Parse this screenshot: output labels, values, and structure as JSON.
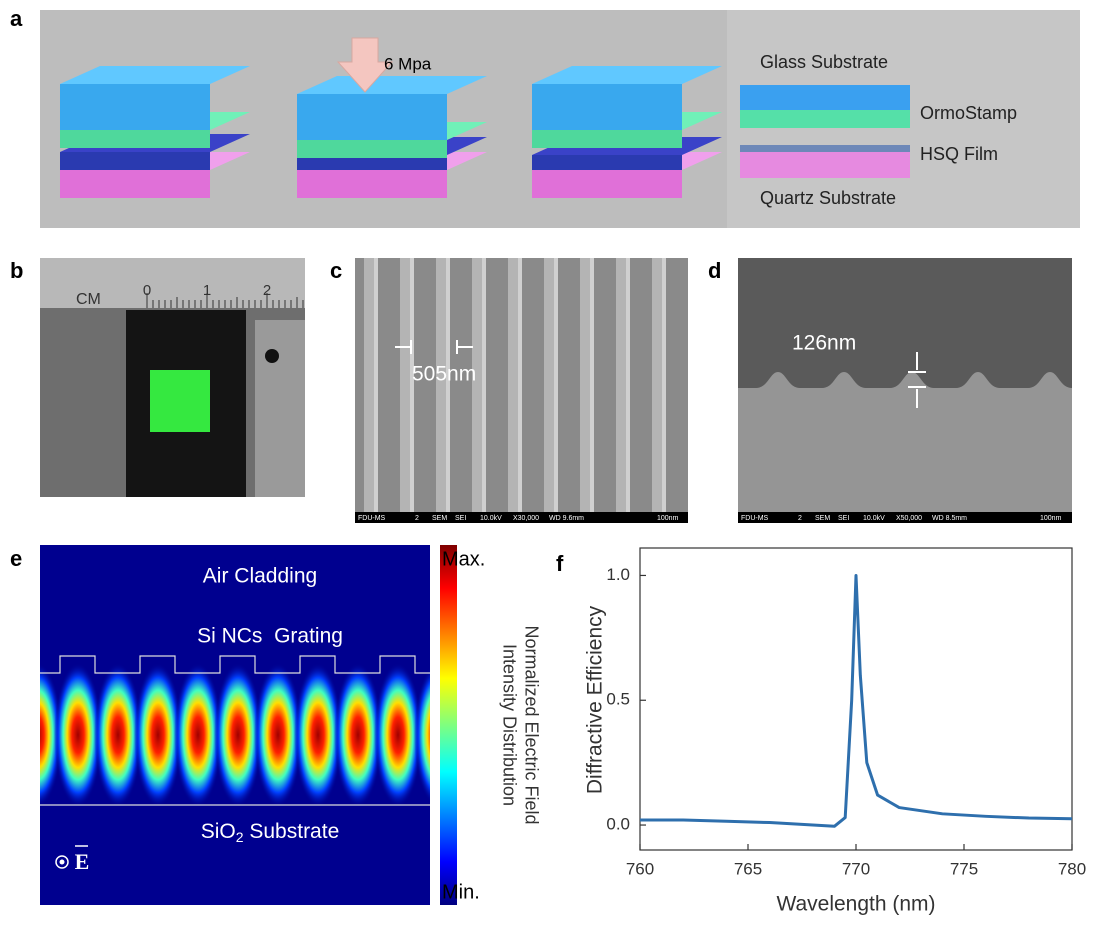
{
  "panels": {
    "a": {
      "label": "a",
      "pressure": "6 Mpa",
      "legend": [
        "Glass Substrate",
        "OrmoStamp",
        "HSQ Film",
        "Quartz Substrate"
      ]
    },
    "b": {
      "label": "b",
      "ruler_unit": "CM",
      "ruler_numbers": [
        "0",
        "1",
        "2"
      ]
    },
    "c": {
      "label": "c",
      "period": "505nm",
      "sem_footer": [
        "FDU-MS",
        "2",
        "SEM",
        "SEI",
        "10.0kV",
        "X30,000",
        "WD 9.6mm",
        "100nm"
      ]
    },
    "d": {
      "label": "d",
      "height": "126nm",
      "sem_footer": [
        "FDU-MS",
        "2",
        "SEM",
        "SEI",
        "10.0kV",
        "X50,000",
        "WD 8.5mm",
        "100nm"
      ]
    },
    "e": {
      "label": "e",
      "air": "Air Cladding",
      "grating": "Si NCs  Grating",
      "substrate": "SiO",
      "substrate_sub": "2",
      "substrate_rest": " Substrate",
      "field": "E",
      "colorbar_max": "Max.",
      "colorbar_min": "Min.",
      "colorbar_title": [
        "Normalized Electric Field",
        "Intensity Distribution"
      ]
    },
    "f": {
      "label": "f"
    }
  },
  "chart_data": {
    "type": "line",
    "xlabel": "Wavelength (nm)",
    "ylabel": "Diffractive Efficiency",
    "x": [
      760,
      762,
      764,
      766,
      768,
      769,
      769.5,
      769.8,
      770,
      770.2,
      770.5,
      771,
      772,
      774,
      776,
      778,
      780
    ],
    "values": [
      0.02,
      0.02,
      0.015,
      0.01,
      0.0,
      -0.005,
      0.03,
      0.5,
      1.0,
      0.6,
      0.25,
      0.12,
      0.07,
      0.045,
      0.035,
      0.028,
      0.025
    ],
    "color": "#2e6fad",
    "xlim": [
      760,
      780
    ],
    "xticks": [
      760,
      765,
      770,
      775,
      780
    ],
    "ylim": [
      -0.1,
      1.11
    ],
    "yticks": [
      {
        "value": 0,
        "label": "0.0"
      },
      0.5,
      {
        "value": 1,
        "label": "1.0"
      }
    ]
  }
}
